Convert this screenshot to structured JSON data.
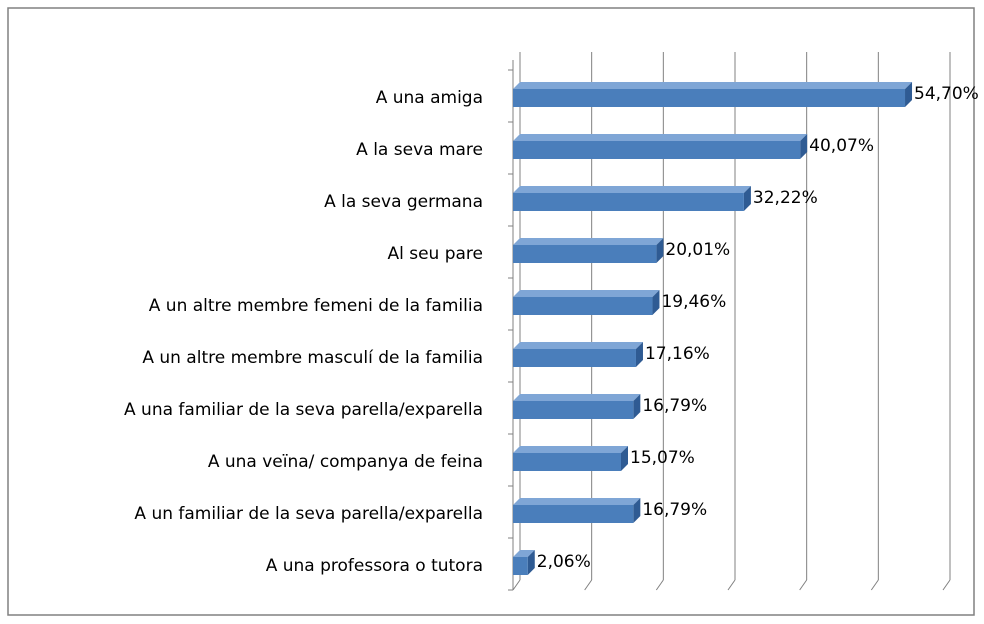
{
  "chart_data": {
    "type": "hbar",
    "categories": [
      "A una amiga",
      "A la seva mare",
      "A la seva germana",
      "Al seu pare",
      "A un altre membre femeni de la familia",
      "A un altre membre masculí de la familia",
      "A una familiar de la seva parella/exparella",
      "A una veïna/ companya de feina",
      "A un familiar de la seva parella/exparella",
      "A una professora o tutora"
    ],
    "values": [
      54.7,
      40.07,
      32.22,
      20.01,
      19.46,
      17.16,
      16.79,
      15.07,
      16.79,
      2.06
    ],
    "value_labels": [
      "54,70%",
      "40,07%",
      "32,22%",
      "20,01%",
      "19,46%",
      "17,16%",
      "16,79%",
      "15,07%",
      "16,79%",
      "2,06%"
    ],
    "color": "#4a7ebb",
    "xlim": [
      0,
      60
    ],
    "xticks": [
      0,
      10,
      20,
      30,
      40,
      50,
      60
    ],
    "grid": true
  }
}
